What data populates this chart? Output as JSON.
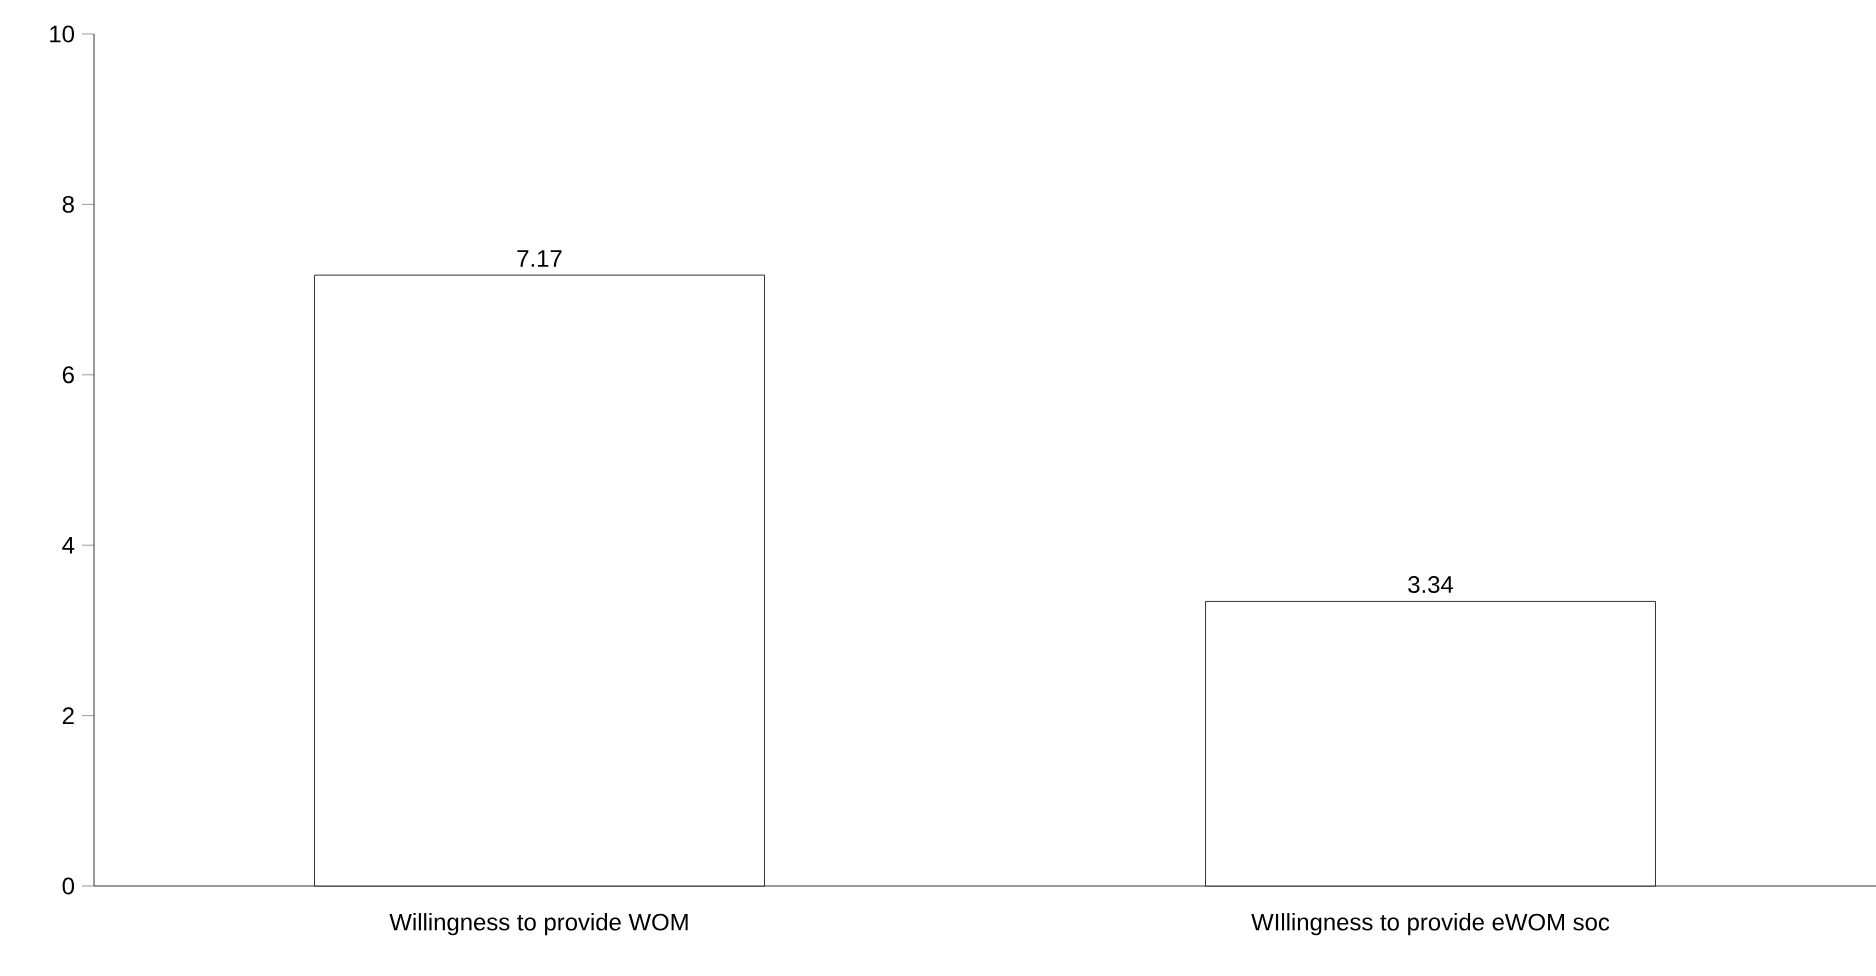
{
  "chart_data": {
    "type": "bar",
    "categories": [
      "Willingness to provide WOM",
      "WIllingness to provide eWOM soc"
    ],
    "values": [
      7.17,
      3.34
    ],
    "color": "#ffffff",
    "ylim": [
      0,
      10
    ],
    "yticks": [
      0,
      2,
      4,
      6,
      8,
      10
    ],
    "data_labels": true
  }
}
